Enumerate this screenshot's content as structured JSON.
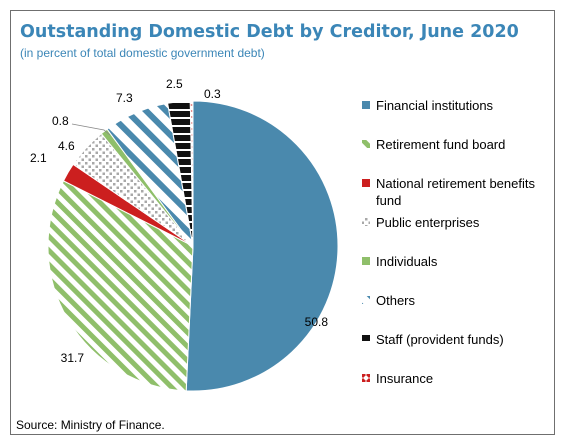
{
  "title": "Outstanding Domestic Debt by Creditor, June 2020",
  "subtitle": "(in percent of total domestic government debt)",
  "source": "Source: Ministry of Finance.",
  "chart_data": {
    "type": "pie",
    "title": "Outstanding Domestic Debt by Creditor, June 2020",
    "subtitle": "(in percent of total domestic government debt)",
    "legend_position": "right",
    "start": "top, clockwise",
    "slices": [
      {
        "label": "Financial institutions",
        "value": 50.8,
        "value_label": "50.8",
        "color": "#4a89ad",
        "pattern": "solid"
      },
      {
        "label": "Retirement fund board",
        "value": 31.7,
        "value_label": "31.7",
        "color": "#8fbf6a",
        "pattern": "diagonal-stripes"
      },
      {
        "label": "National retirement benefits fund",
        "value": 2.1,
        "value_label": "2.1",
        "color": "#cc1f1f",
        "pattern": "solid"
      },
      {
        "label": "Public enterprises",
        "value": 4.6,
        "value_label": "4.6",
        "color": "#a5a5a5",
        "pattern": "dots"
      },
      {
        "label": "Individuals",
        "value": 0.8,
        "value_label": "0.8",
        "color": "#8fbf6a",
        "pattern": "solid"
      },
      {
        "label": "Others",
        "value": 7.3,
        "value_label": "7.3",
        "color": "#4a89ad",
        "pattern": "wide-diagonal-stripes"
      },
      {
        "label": "Staff (provident funds)",
        "value": 2.5,
        "value_label": "2.5",
        "color": "#111111",
        "pattern": "dashed"
      },
      {
        "label": "Insurance",
        "value": 0.3,
        "value_label": "0.3",
        "color": "#cc1f1f",
        "pattern": "zigzag"
      }
    ],
    "legend": [
      "Financial institutions",
      "Retirement fund board",
      "National retirement benefits fund",
      "Public enterprises",
      "Individuals",
      "Others",
      "Staff (provident funds)",
      "Insurance"
    ]
  }
}
